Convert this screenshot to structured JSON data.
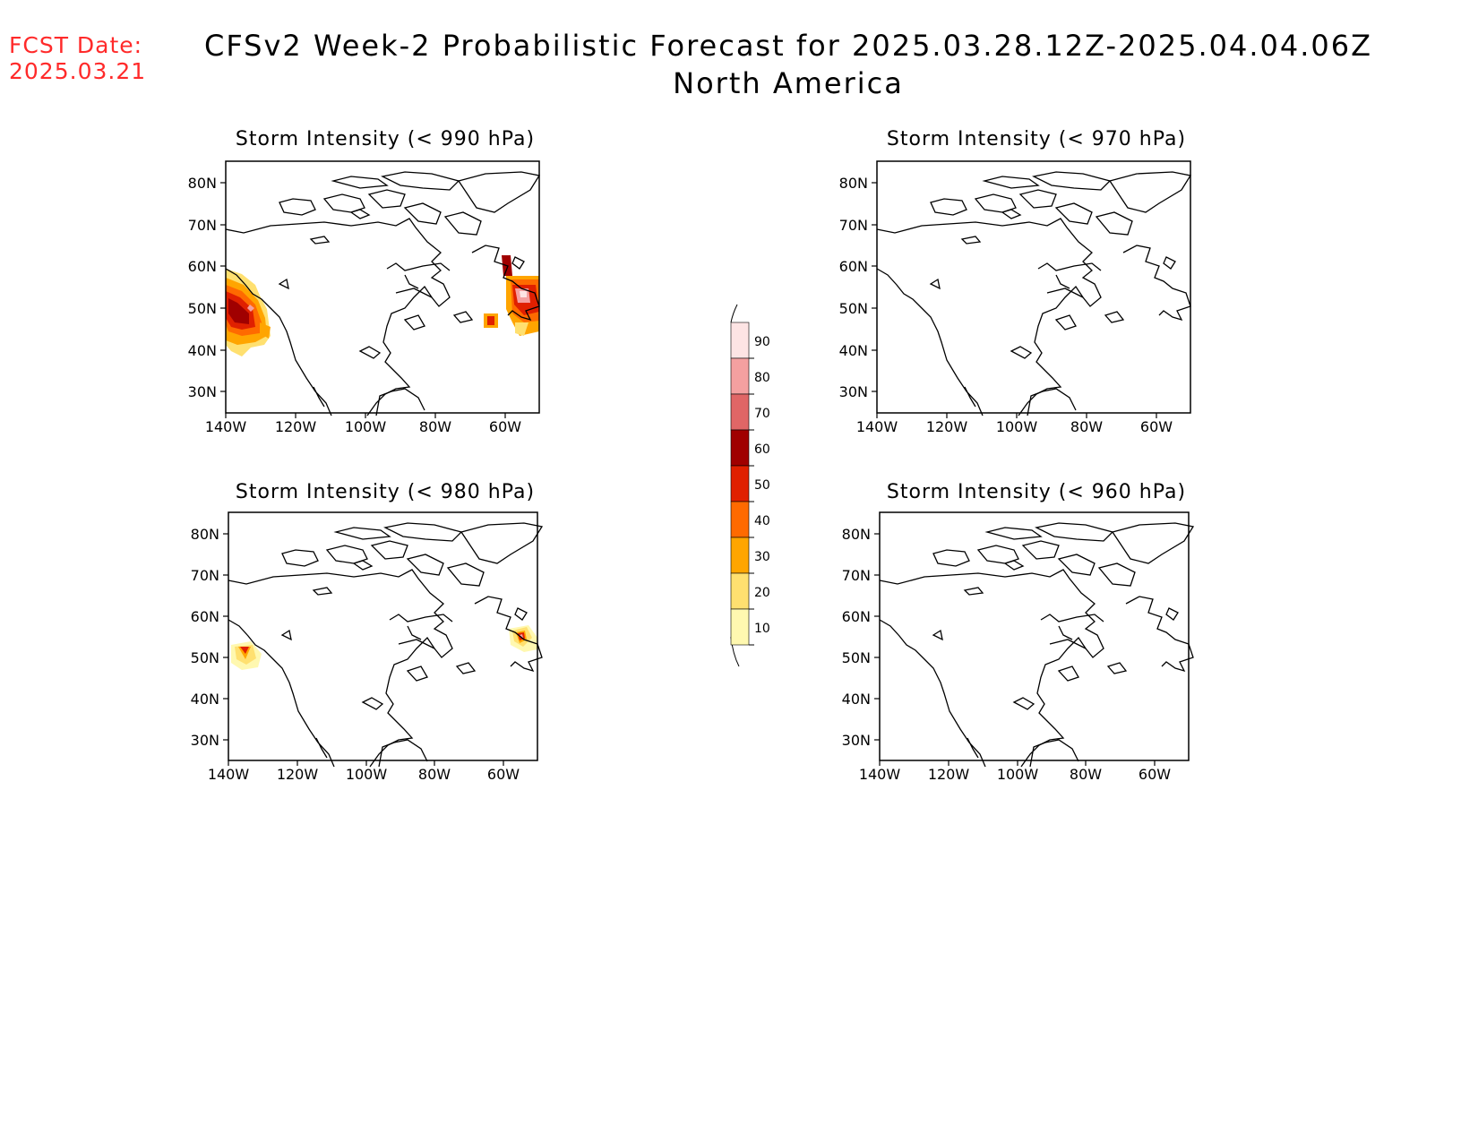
{
  "header": {
    "fcst_label": "FCST Date:",
    "fcst_date": "2025.03.21",
    "title": "CFSv2 Week-2 Probabilistic Forecast for 2025.03.28.12Z-2025.04.04.06Z",
    "subtitle": "North America"
  },
  "panels": [
    {
      "title": "Storm Intensity (< 990 hPa)"
    },
    {
      "title": "Storm Intensity (< 970 hPa)"
    },
    {
      "title": "Storm Intensity (< 980 hPa)"
    },
    {
      "title": "Storm Intensity (< 960 hPa)"
    }
  ],
  "axes": {
    "lat_ticks": [
      "80N",
      "70N",
      "60N",
      "50N",
      "40N",
      "30N"
    ],
    "lon_ticks": [
      "140W",
      "120W",
      "100W",
      "80W",
      "60W"
    ]
  },
  "colorbar": {
    "levels": [
      "90",
      "80",
      "70",
      "60",
      "50",
      "40",
      "30",
      "20",
      "10"
    ],
    "colors": [
      "#fde4e4",
      "#f4a0a0",
      "#e06666",
      "#a00000",
      "#e02000",
      "#ff6a00",
      "#ffa500",
      "#ffe070",
      "#fff8b0"
    ]
  }
}
